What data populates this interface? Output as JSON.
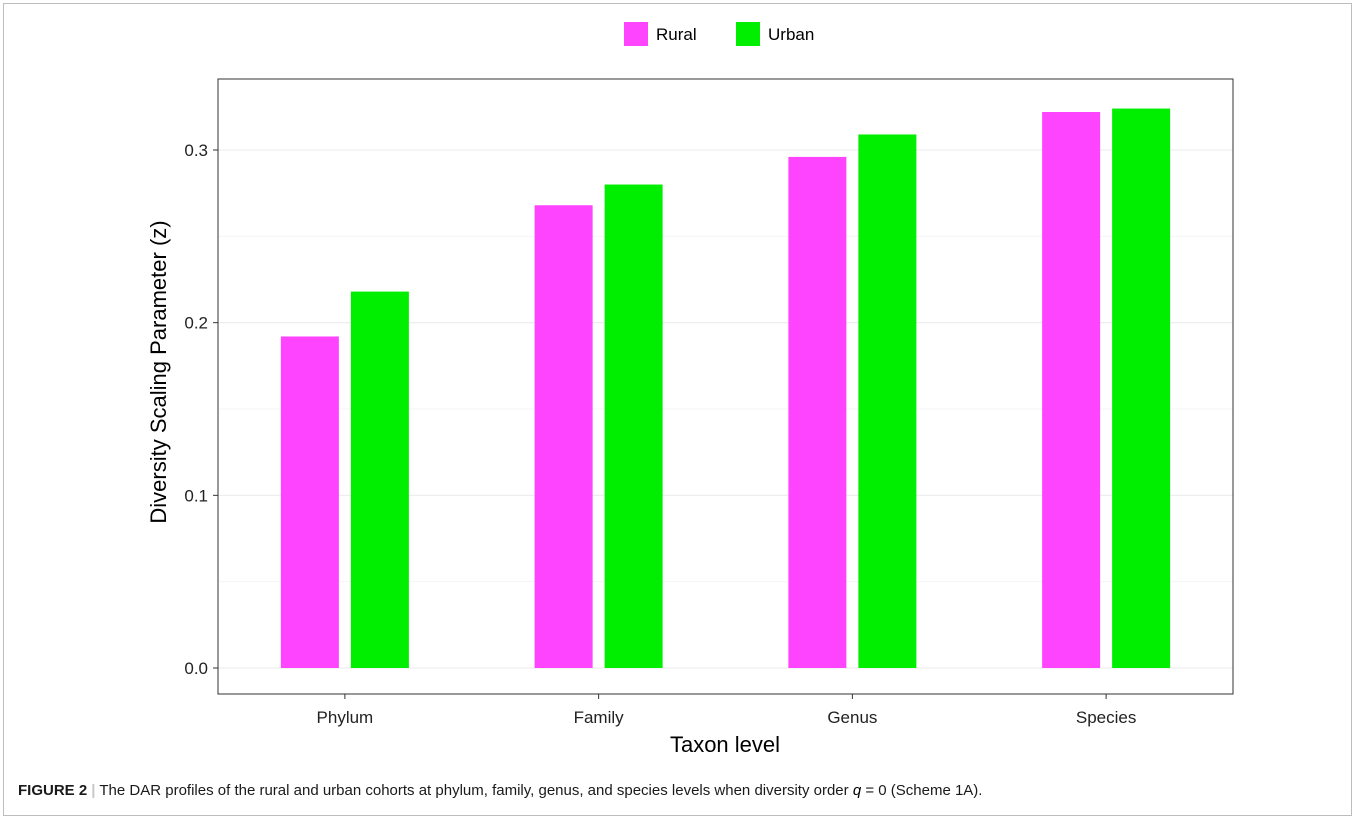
{
  "chart_data": {
    "type": "bar",
    "title": "",
    "xlabel": "Taxon level",
    "ylabel": "Diversity Scaling Parameter (z)",
    "categories": [
      "Phylum",
      "Family",
      "Genus",
      "Species"
    ],
    "series": [
      {
        "name": "Rural",
        "color": "#ff44ff",
        "values": [
          0.192,
          0.268,
          0.296,
          0.322
        ]
      },
      {
        "name": "Urban",
        "color": "#00ee00",
        "values": [
          0.218,
          0.28,
          0.309,
          0.324
        ]
      }
    ],
    "ylim": [
      0,
      0.3385
    ],
    "yticks": [
      0.0,
      0.1,
      0.2,
      0.3
    ],
    "ytick_labels": [
      "0.0",
      "0.1",
      "0.2",
      "0.3"
    ],
    "legend_position": "top",
    "grid": true
  },
  "caption": {
    "label": "FIGURE 2",
    "separator": "|",
    "text_before": "The DAR profiles of the rural and urban cohorts at phylum, family, genus, and species levels when diversity order ",
    "q_symbol": "q",
    "text_after": " = 0 (Scheme 1A)."
  }
}
